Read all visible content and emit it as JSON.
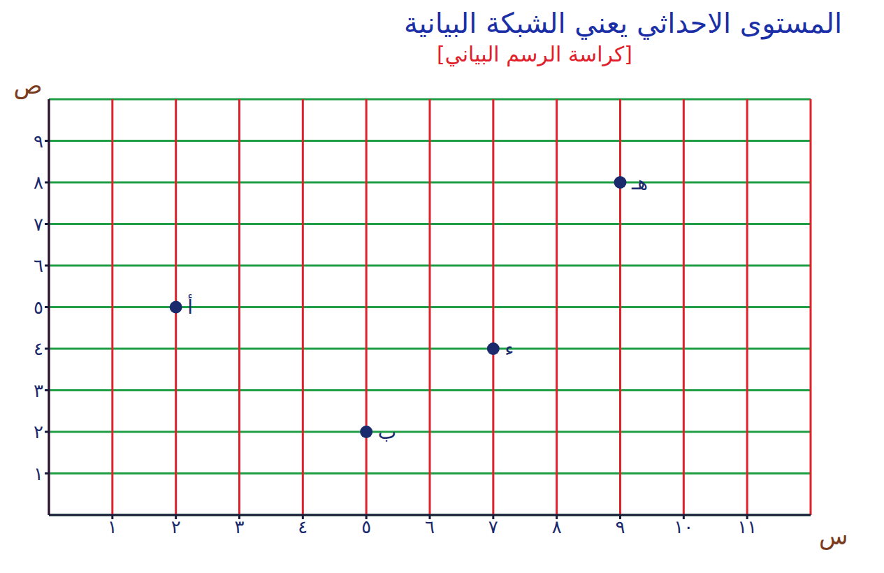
{
  "chart_data": {
    "type": "scatter",
    "title": "المستوى الاحداثي يعني الشبكة البيانية",
    "subtitle": "[كراسة الرسم البياني]",
    "x_label": "س",
    "y_label": "ص",
    "x": [
      2,
      5,
      7,
      9
    ],
    "values": [
      5,
      2,
      4,
      8
    ],
    "point_labels": [
      "أ",
      "ب",
      "ء",
      "هـ"
    ],
    "color": "#1a2a6c",
    "xlim": [
      0,
      12
    ],
    "ylim": [
      0,
      10
    ],
    "xticks": [
      {
        "value": 1,
        "label": "١"
      },
      {
        "value": 2,
        "label": "٢"
      },
      {
        "value": 3,
        "label": "٣"
      },
      {
        "value": 4,
        "label": "٤"
      },
      {
        "value": 5,
        "label": "٥"
      },
      {
        "value": 6,
        "label": "٦"
      },
      {
        "value": 7,
        "label": "٧"
      },
      {
        "value": 8,
        "label": "٨"
      },
      {
        "value": 9,
        "label": "٩"
      },
      {
        "value": 10,
        "label": "١٠"
      },
      {
        "value": 11,
        "label": "١١"
      }
    ],
    "yticks": [
      {
        "value": 1,
        "label": "١"
      },
      {
        "value": 2,
        "label": "٢"
      },
      {
        "value": 3,
        "label": "٣"
      },
      {
        "value": 4,
        "label": "٤"
      },
      {
        "value": 5,
        "label": "٥"
      },
      {
        "value": 6,
        "label": "٦"
      },
      {
        "value": 7,
        "label": "٧"
      },
      {
        "value": 8,
        "label": "٨"
      },
      {
        "value": 9,
        "label": "٩"
      }
    ],
    "grid": true
  }
}
